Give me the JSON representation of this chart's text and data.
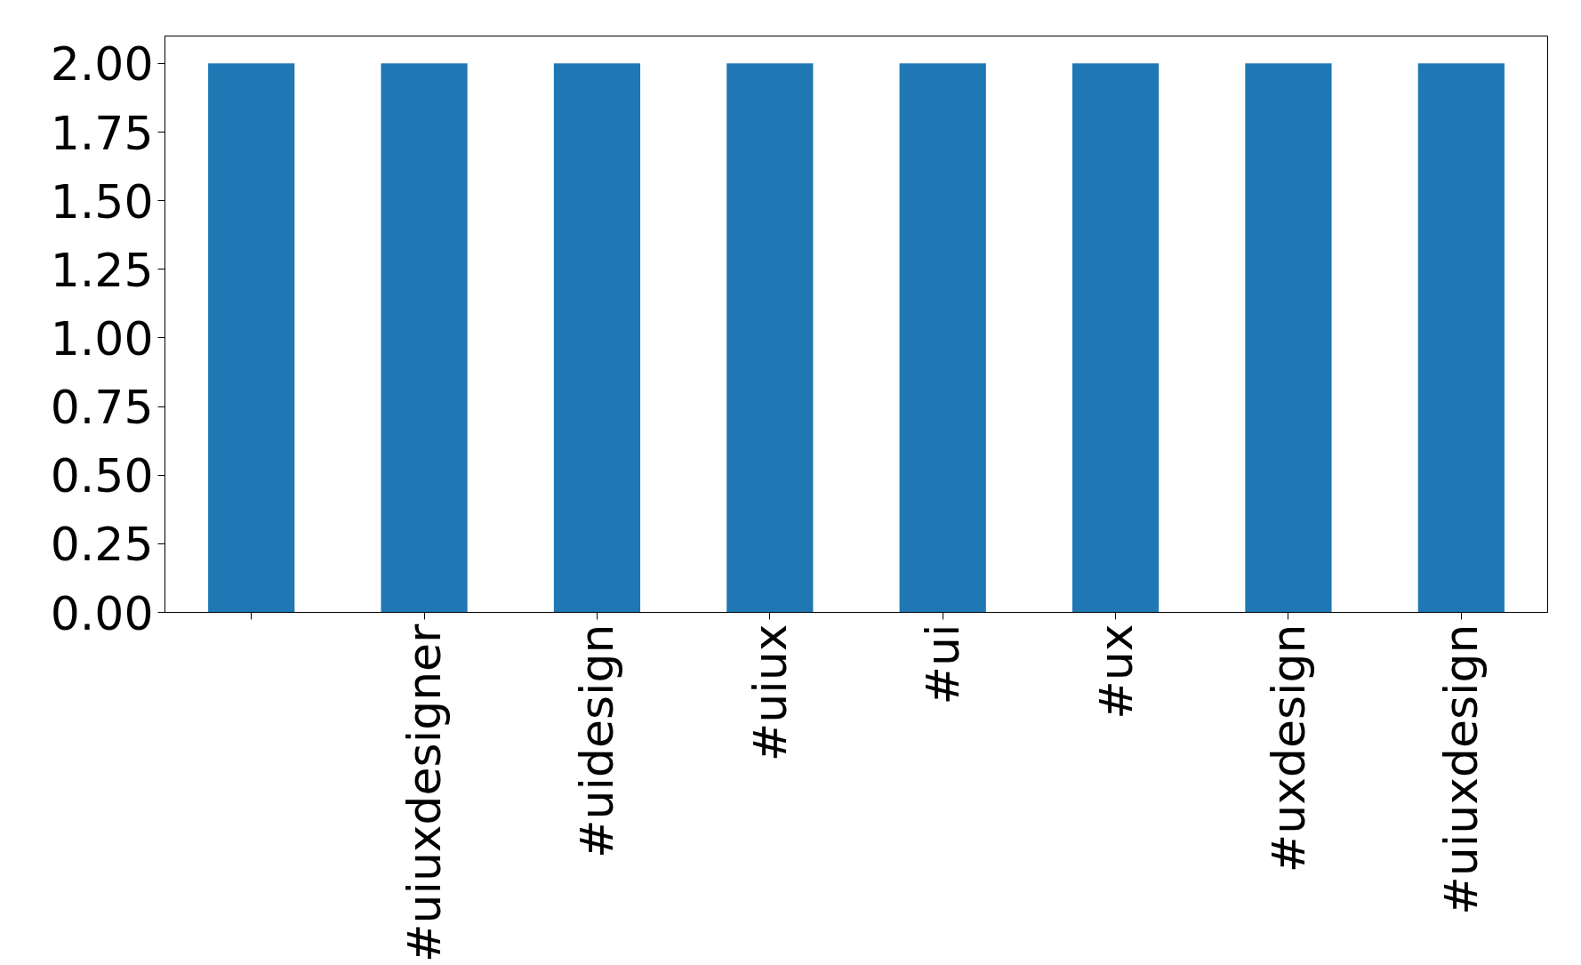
{
  "chart_data": {
    "type": "bar",
    "categories": [
      null,
      "#uiuxdesigner",
      "#uidesign",
      "#uiux",
      "#ui",
      "#ux",
      "#uxdesign",
      "#uiuxdesign"
    ],
    "values": [
      2,
      2,
      2,
      2,
      2,
      2,
      2,
      2
    ],
    "color": "#1f77b4",
    "ylim": [
      0,
      2.1
    ],
    "yticks": [
      {
        "value": 0,
        "label": "0.00"
      },
      {
        "value": 0.25,
        "label": "0.25"
      },
      {
        "value": 0.5,
        "label": "0.50"
      },
      {
        "value": 0.75,
        "label": "0.75"
      },
      {
        "value": 1,
        "label": "1.00"
      },
      {
        "value": 1.25,
        "label": "1.25"
      },
      {
        "value": 1.5,
        "label": "1.50"
      },
      {
        "value": 1.75,
        "label": "1.75"
      },
      {
        "value": 2,
        "label": "2.00"
      }
    ],
    "grid": false
  }
}
